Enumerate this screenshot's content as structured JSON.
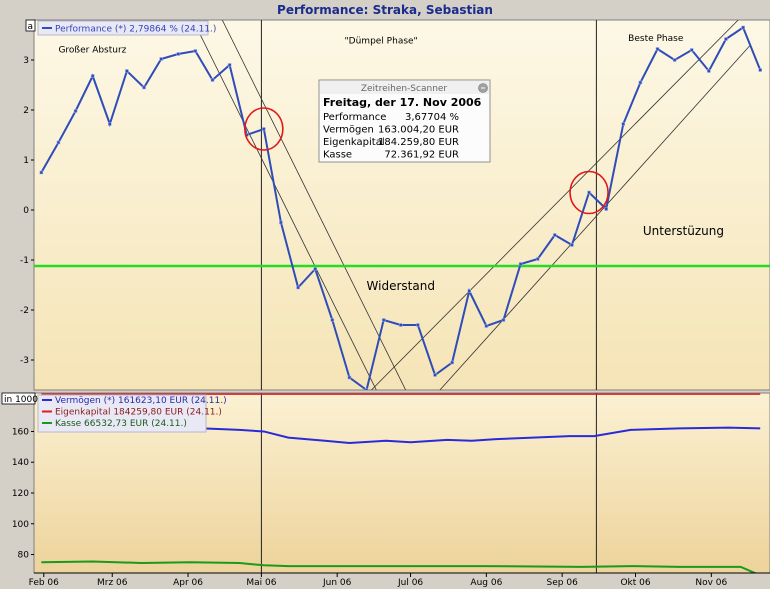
{
  "title": "Performance: Straka, Sebastian",
  "colors": {
    "background": "#fbf3d9",
    "background_bottom": "#efd7a2",
    "performance": "#2f4db8",
    "support": "#22dd22",
    "vermoegen": "#2a2ad8",
    "eigenkapital": "#e02020",
    "kasse": "#1a9a1a",
    "circle": "#e01818"
  },
  "chart_data": [
    {
      "type": "line",
      "panel_label": "a",
      "legend": [
        "Performance (*) 2,79864 % (24.11.)"
      ],
      "ylim": [
        -3.6,
        3.8
      ],
      "yticks": [
        3,
        2,
        1,
        0,
        -1,
        -2,
        -3
      ],
      "x_ticks": [
        "Feb 06",
        "Mrz 06",
        "Apr 06",
        "Mai 06",
        "Jun 06",
        "Jul 06",
        "Aug 06",
        "Sep 06",
        "Okt 06",
        "Nov 06"
      ],
      "x_tick_pos": [
        0,
        28,
        59,
        89,
        120,
        150,
        181,
        212,
        242,
        273
      ],
      "x_range": [
        -4,
        297
      ],
      "series": [
        {
          "name": "Performance (*) 2,79864 % (24.11.)",
          "x": [
            -1,
            6,
            13,
            20,
            27,
            34,
            41,
            48,
            55,
            62,
            69,
            76,
            83,
            90,
            97,
            104,
            111,
            118,
            125,
            132,
            139,
            146,
            153,
            160,
            167,
            174,
            181,
            188,
            195,
            202,
            209,
            216,
            223,
            230,
            237,
            244,
            251,
            258,
            265,
            272,
            279,
            286,
            293
          ],
          "values": [
            0.75,
            1.35,
            1.98,
            2.68,
            1.72,
            2.78,
            2.45,
            3.02,
            3.12,
            3.18,
            2.6,
            2.9,
            1.5,
            1.62,
            -0.25,
            -1.55,
            -1.18,
            -2.2,
            -3.35,
            -3.6,
            -2.2,
            -2.3,
            -2.3,
            -3.3,
            -3.05,
            -1.62,
            -2.32,
            -2.2,
            -1.08,
            -0.98,
            -0.5,
            -0.7,
            0.35,
            0.02,
            1.72,
            2.55,
            3.22,
            3.0,
            3.2,
            2.78,
            3.42,
            3.65,
            2.8
          ]
        }
      ],
      "support_level": -1.12,
      "vertical_markers_x": [
        89,
        226
      ],
      "trend_lines": [
        {
          "from": [
            61,
            3.8
          ],
          "to": [
            136,
            -3.6
          ]
        },
        {
          "from": [
            73,
            3.8
          ],
          "to": [
            148,
            -3.6
          ]
        },
        {
          "from": [
            134,
            -3.6
          ],
          "to": [
            284,
            3.8
          ]
        },
        {
          "from": [
            162,
            -3.6
          ],
          "to": [
            289,
            3.3
          ]
        }
      ],
      "highlight_points": [
        {
          "x": 90,
          "y": 1.62
        },
        {
          "x": 223,
          "y": 0.35
        }
      ],
      "annotations": [
        {
          "text": "Großer Absturz",
          "x": 6,
          "y": 3.15,
          "size": "small"
        },
        {
          "text": "\"Dümpel Phase\"",
          "x": 123,
          "y": 3.33,
          "size": "small"
        },
        {
          "text": "Beste Phase",
          "x": 239,
          "y": 3.38,
          "size": "small"
        },
        {
          "text": "Widerstand",
          "x": 132,
          "y": -1.6,
          "size": "big"
        },
        {
          "text": "Unterstüzung",
          "x": 245,
          "y": -0.5,
          "size": "big"
        }
      ],
      "tooltip": {
        "title": "Zeitreihen-Scanner",
        "date": "Freitag, der 17. Nov 2006",
        "rows": [
          {
            "label": "Performance",
            "value": "3,67704 %"
          },
          {
            "label": "Vermögen",
            "value": "163.004,20 EUR"
          },
          {
            "label": "Eigenkapital",
            "value": "184.259,80 EUR"
          },
          {
            "label": "Kasse",
            "value": "72.361,92 EUR"
          }
        ]
      }
    },
    {
      "type": "line",
      "panel_label": "in 1000",
      "ylim": [
        68,
        185
      ],
      "yticks": [
        160,
        140,
        120,
        100,
        80
      ],
      "legend": [
        "Vermögen (*) 161623,10 EUR (24.11.)",
        "Eigenkapital 184259,80 EUR (24.11.)",
        "Kasse 66532,73 EUR (24.11.)"
      ],
      "series": [
        {
          "name": "Vermögen (*) 161623,10 EUR (24.11.)",
          "x": [
            -1,
            20,
            40,
            60,
            80,
            90,
            100,
            115,
            125,
            140,
            150,
            165,
            175,
            185,
            200,
            215,
            225,
            240,
            260,
            280,
            293
          ],
          "values": [
            161.5,
            162.5,
            162.0,
            162.3,
            161.0,
            160.0,
            156.0,
            154.0,
            152.5,
            154.0,
            153.0,
            154.5,
            154.0,
            155.0,
            156.0,
            157.0,
            157.0,
            161.0,
            162.0,
            162.5,
            162.0
          ]
        },
        {
          "name": "Eigenkapital 184259,80 EUR (24.11.)",
          "x": [
            -1,
            293
          ],
          "values": [
            184.26,
            184.26
          ]
        },
        {
          "name": "Kasse 66532,73 EUR (24.11.)",
          "x": [
            -1,
            20,
            40,
            60,
            80,
            90,
            100,
            140,
            180,
            220,
            240,
            260,
            285,
            293
          ],
          "values": [
            75.0,
            75.5,
            74.5,
            75.0,
            74.5,
            73.0,
            72.5,
            72.5,
            72.5,
            72.0,
            72.5,
            72.0,
            72.0,
            66.5
          ]
        }
      ]
    }
  ]
}
